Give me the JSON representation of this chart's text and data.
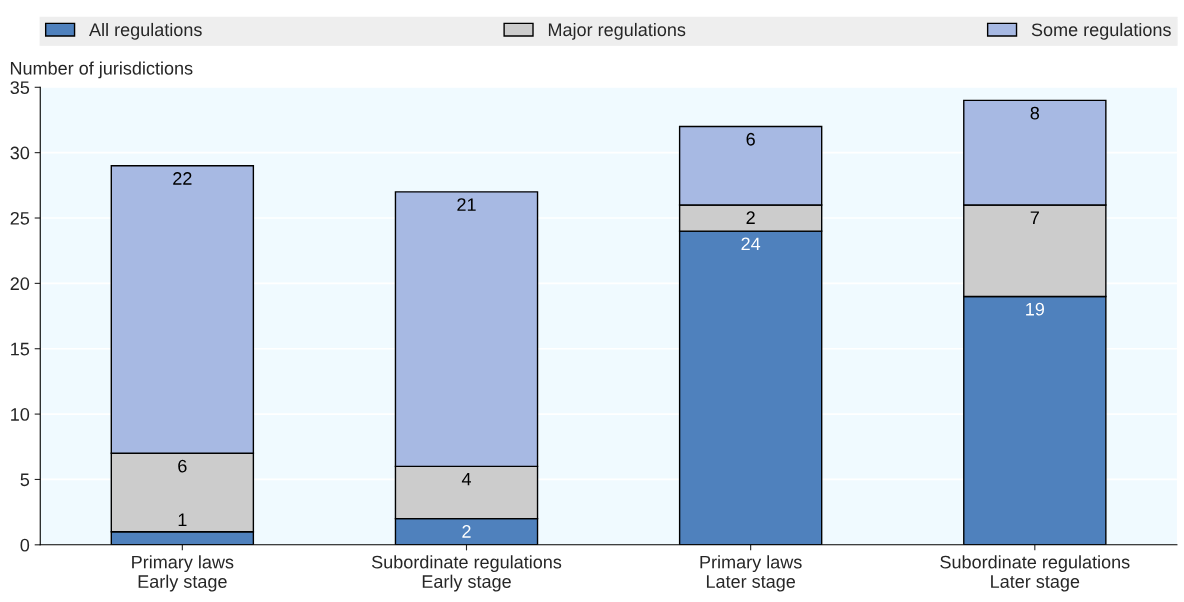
{
  "chart_data": {
    "type": "bar",
    "stacked": true,
    "ylabel": "Number of jurisdictions",
    "categories": [
      "Primary laws\nEarly stage",
      "Subordinate regulations\nEarly stage",
      "Primary laws\nLater stage",
      "Subordinate regulations\nLater stage"
    ],
    "series": [
      {
        "name": "All regulations",
        "color": "#4f81bd",
        "values": [
          1,
          2,
          24,
          19
        ]
      },
      {
        "name": "Major regulations",
        "color": "#cccccc",
        "values": [
          6,
          4,
          2,
          7
        ]
      },
      {
        "name": "Some regulations",
        "color": "#a7b9e3",
        "values": [
          22,
          21,
          6,
          8
        ]
      }
    ],
    "ylim": [
      0,
      35
    ],
    "yticks": [
      0,
      5,
      10,
      15,
      20,
      25,
      30,
      35
    ],
    "grid": "y",
    "legend": "top",
    "data_labels": true
  }
}
